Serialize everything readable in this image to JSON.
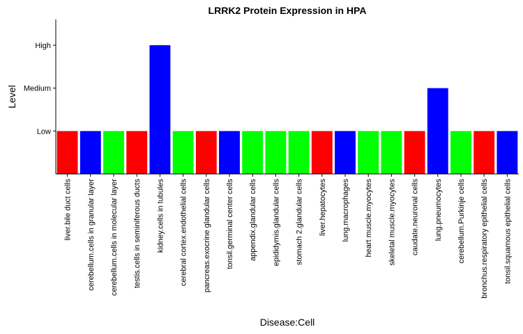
{
  "chart_data": {
    "type": "bar",
    "title": "LRRK2 Protein Expression in HPA",
    "xlabel": "Disease:Cell",
    "ylabel": "Level",
    "y_ticks": [
      {
        "label": "Low",
        "value": 1
      },
      {
        "label": "Medium",
        "value": 2
      },
      {
        "label": "High",
        "value": 3
      }
    ],
    "ylim": [
      0,
      3.6
    ],
    "grid": false,
    "legend": "none",
    "categories": [
      "liver.bile duct cells",
      "cerebellum.cells in granular layer",
      "cerebellum.cells in molecular layer",
      "testis.cells in seminiferous ducts",
      "kidney.cells in tubules",
      "cerebral cortex.endothelial cells",
      "pancreas.exocrine glandular cells",
      "tonsil.germinal center cells",
      "appendix.glandular cells",
      "epididymis.glandular cells",
      "stomach 2.glandular cells",
      "liver.hepatocytes",
      "lung.macrophages",
      "heart muscle.myocytes",
      "skeletal muscle.myocytes",
      "caudate.neuronal cells",
      "lung.pneumocytes",
      "cerebellum.Purkinje cells",
      "bronchus.respiratory epithelial cells",
      "tonsil.squamous epithelial cells"
    ],
    "values": [
      1,
      1,
      1,
      1,
      3,
      1,
      1,
      1,
      1,
      1,
      1,
      1,
      1,
      1,
      1,
      1,
      2,
      1,
      1,
      1
    ],
    "bar_colors": [
      "#FF0000",
      "#0000FF",
      "#00FF00",
      "#FF0000",
      "#0000FF",
      "#00FF00",
      "#FF0000",
      "#0000FF",
      "#00FF00",
      "#00FF00",
      "#00FF00",
      "#FF0000",
      "#0000FF",
      "#00FF00",
      "#00FF00",
      "#FF0000",
      "#0000FF",
      "#00FF00",
      "#FF0000",
      "#0000FF"
    ]
  }
}
